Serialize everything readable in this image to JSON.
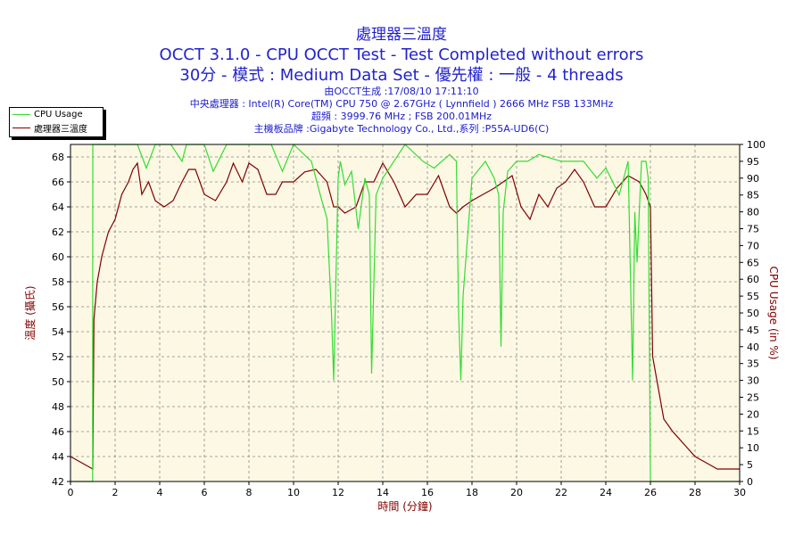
{
  "header": {
    "title_cn": "處理器三溫度",
    "title_test": "OCCT 3.1.0 - CPU OCCT Test - Test Completed without errors",
    "title_mode": "30分 - 模式 : Medium Data Set - 優先權 : 一般 - 4 threads",
    "info_generated": "由OCCT生成 :17/08/10 17:11:10",
    "info_cpu": "中央處理器 : Intel(R) Core(TM) CPU 750 @ 2.67GHz ( Lynnfield ) 2666 MHz FSB 133MHz",
    "info_freq": "超頻 : 3999.76 MHz ; FSB 200.01MHz",
    "info_mobo": "主機板品牌 :Gigabyte Technology Co., Ltd.,系列 :P55A-UD6(C)"
  },
  "legend": {
    "usage_label": "CPU Usage",
    "temp_label": "處理器三溫度"
  },
  "colors": {
    "usage": "#33dd33",
    "temp": "#800000",
    "plot_bg": "#fdf8e4",
    "grid": "#888888",
    "title": "#2222cc"
  },
  "chart_data": {
    "type": "line",
    "xlabel": "時間 (分鐘)",
    "ylabel_left": "溫度 (攝氏)",
    "ylabel_right": "CPU Usage (in %)",
    "xlim": [
      0,
      30
    ],
    "ylim_left": [
      42,
      69
    ],
    "ylim_right": [
      0,
      100
    ],
    "x_ticks": [
      "0",
      "2",
      "4",
      "6",
      "8",
      "10",
      "12",
      "14",
      "16",
      "18",
      "20",
      "22",
      "24",
      "26",
      "28",
      "30"
    ],
    "y_left_ticks": [
      "42",
      "44",
      "46",
      "48",
      "50",
      "52",
      "54",
      "56",
      "58",
      "60",
      "62",
      "64",
      "66",
      "68"
    ],
    "y_right_ticks": [
      "0",
      "5",
      "10",
      "15",
      "20",
      "25",
      "30",
      "35",
      "40",
      "45",
      "50",
      "55",
      "60",
      "65",
      "70",
      "75",
      "80",
      "85",
      "90",
      "95",
      "100"
    ],
    "grid": true,
    "series": [
      {
        "name": "處理器三溫度",
        "axis": "left",
        "x": [
          0,
          0.5,
          1.0,
          1.05,
          1.2,
          1.4,
          1.7,
          2.0,
          2.3,
          2.6,
          2.8,
          3.0,
          3.2,
          3.5,
          3.8,
          4.2,
          4.6,
          5.0,
          5.3,
          5.6,
          6.0,
          6.5,
          7.0,
          7.3,
          7.7,
          8.0,
          8.4,
          8.8,
          9.2,
          9.5,
          10.0,
          10.5,
          11.0,
          11.5,
          11.8,
          12.0,
          12.3,
          12.8,
          13.2,
          13.6,
          14.0,
          14.5,
          15.0,
          15.5,
          16.0,
          16.5,
          17.0,
          17.3,
          17.6,
          18.0,
          18.5,
          19.0,
          19.4,
          19.8,
          20.2,
          20.6,
          21.0,
          21.4,
          21.8,
          22.2,
          22.6,
          23.0,
          23.5,
          24.0,
          24.5,
          25.0,
          25.5,
          25.8,
          26.0,
          26.1,
          26.3,
          26.6,
          27.0,
          27.5,
          28.0,
          28.5,
          29.0,
          29.5,
          30.0
        ],
        "y": [
          44,
          43.5,
          43,
          55,
          58,
          60,
          62,
          63,
          65,
          66,
          67,
          67.5,
          65,
          66,
          64.5,
          64,
          64.5,
          66,
          67,
          67,
          65,
          64.5,
          66,
          67.5,
          66,
          67.5,
          67,
          65,
          65,
          66,
          66,
          66.8,
          67,
          66,
          64,
          64,
          63.5,
          64,
          66,
          66,
          67.5,
          66,
          64,
          65,
          65,
          66.5,
          64,
          63.5,
          64,
          64.5,
          65,
          65.5,
          66,
          66.5,
          64,
          63,
          65,
          64,
          65.5,
          66,
          67,
          66,
          64,
          64,
          65.5,
          66.5,
          66,
          65,
          64,
          52,
          50,
          47,
          46,
          45,
          44,
          43.5,
          43,
          43,
          43
        ]
      },
      {
        "name": "CPU Usage",
        "axis": "right",
        "x": [
          0,
          0.99,
          1.0,
          1.05,
          1.1,
          2.0,
          3.0,
          3.4,
          3.8,
          4.5,
          5.0,
          5.2,
          6.0,
          6.4,
          7.0,
          8.0,
          9.0,
          9.5,
          10.0,
          10.8,
          11.2,
          11.5,
          11.7,
          11.8,
          11.9,
          12.0,
          12.1,
          12.3,
          12.6,
          12.9,
          13.2,
          13.4,
          13.5,
          13.7,
          14.0,
          15.0,
          15.8,
          16.3,
          17.0,
          17.3,
          17.4,
          17.5,
          17.6,
          18.0,
          18.6,
          19.0,
          19.2,
          19.3,
          19.4,
          19.6,
          20.0,
          20.5,
          21.0,
          22.0,
          23.0,
          23.6,
          24.0,
          24.6,
          25.0,
          25.2,
          25.3,
          25.4,
          25.6,
          25.8,
          25.9,
          26.0,
          26.05,
          26.1,
          27.0,
          28.0,
          29.0,
          30.0
        ],
        "y": [
          0,
          0,
          100,
          100,
          100,
          100,
          100,
          93,
          100,
          100,
          95,
          100,
          100,
          92,
          100,
          100,
          100,
          92,
          100,
          95,
          85,
          78,
          50,
          30,
          60,
          90,
          95,
          88,
          92,
          75,
          90,
          85,
          32,
          85,
          90,
          100,
          95,
          93,
          97,
          95,
          50,
          30,
          55,
          90,
          95,
          90,
          85,
          40,
          80,
          92,
          95,
          95,
          97,
          95,
          95,
          90,
          93,
          85,
          95,
          30,
          80,
          65,
          95,
          95,
          90,
          0,
          0,
          0,
          0,
          0,
          0,
          0
        ]
      }
    ]
  }
}
